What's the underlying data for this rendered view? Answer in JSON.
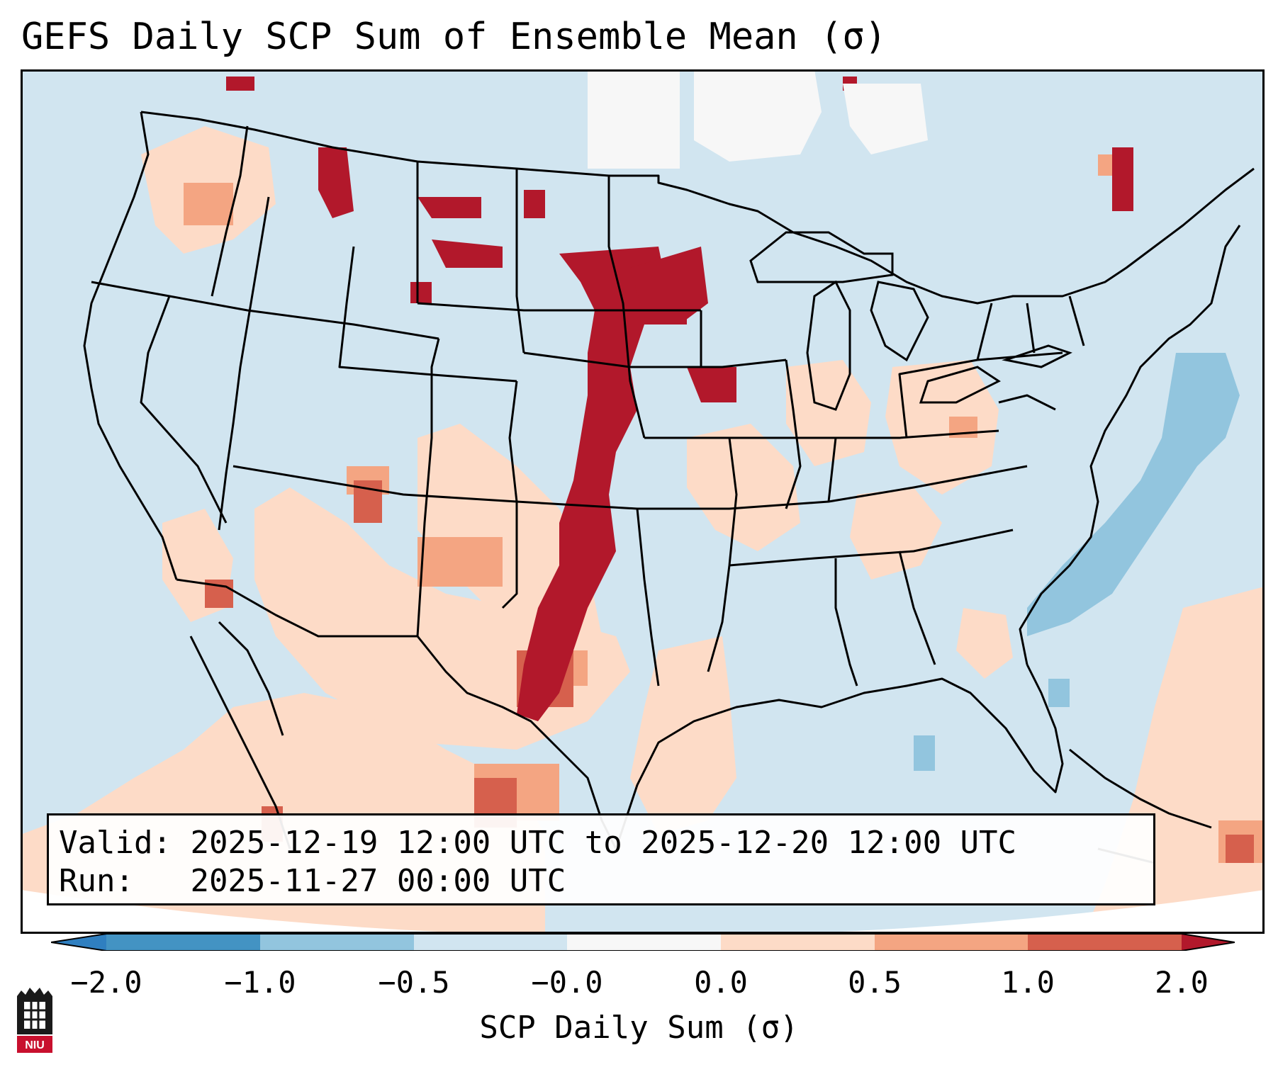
{
  "title": "GEFS Daily SCP Sum of Ensemble Mean (σ)",
  "info": {
    "valid_label": "Valid:",
    "valid_text": "2025-12-19 12:00 UTC to 2025-12-20 12:00 UTC",
    "run_label": "Run:",
    "run_text": "2025-11-27 00:00 UTC"
  },
  "colorbar": {
    "label": "SCP Daily Sum (σ)",
    "ticks": [
      "−2.0",
      "−1.0",
      "−0.5",
      "−0.0",
      "0.0",
      "0.5",
      "1.0",
      "2.0"
    ],
    "colors": {
      "below": "#2f7fc0",
      "b1": "#4393c3",
      "b2": "#92c5de",
      "b3": "#d1e5f0",
      "b4": "#f7f7f7",
      "b5": "#fddbc7",
      "b6": "#f4a582",
      "b7": "#d6604d",
      "above": "#b2182b"
    }
  },
  "logo_text": "NIU",
  "map_colors": {
    "background": "#d1e5f0",
    "light_red": "#fddbc7",
    "mid_red": "#f4a582",
    "red": "#d6604d",
    "dark_red": "#b2182b",
    "light_blue": "#92c5de",
    "white": "#f7f7f7",
    "border": "#000000"
  }
}
